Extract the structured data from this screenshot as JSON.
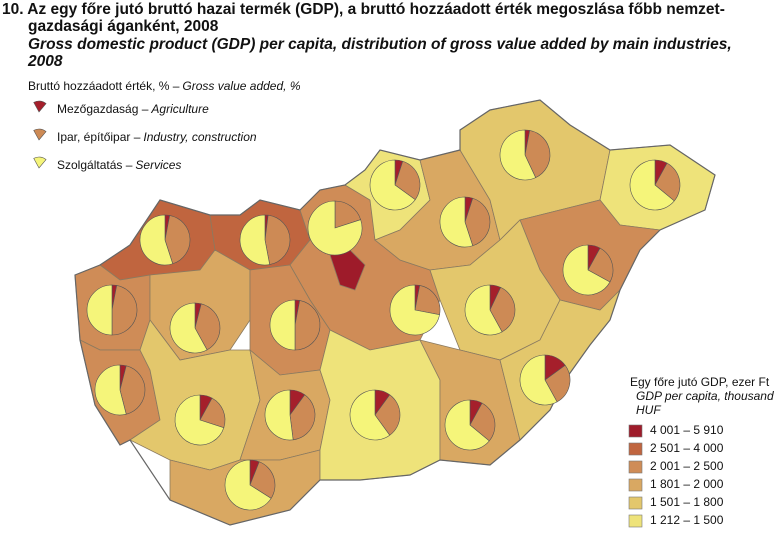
{
  "title": {
    "hu": [
      "10. Az egy főre jutó bruttó hazai termék (GDP), a bruttó hozzáadott érték megoszlása főbb nemzet-",
      "gazdasági áganként, 2008"
    ],
    "en": [
      "Gross domestic product (GDP) per capita, distribution of gross value added by main industries,",
      "2008"
    ]
  },
  "pie_legend": {
    "title_hu": "Bruttó hozzáadott érték, % –",
    "title_en": "Gross value added, %",
    "items": [
      {
        "hu": "Mezőgazdaság –",
        "en": "Agriculture",
        "color": "#a51f2b"
      },
      {
        "hu": "Ipar, építőipar –",
        "en": "Industry, construction",
        "color": "#cd8a55"
      },
      {
        "hu": "Szolgáltatás –",
        "en": "Services",
        "color": "#f5f57a"
      }
    ]
  },
  "gdp_legend": {
    "title": [
      "Egy főre jutó GDP, ezer Ft",
      "GDP per capita, thousand",
      "HUF"
    ],
    "classes": [
      {
        "label": "4 001 – 5 910",
        "color": "#9e1b2a"
      },
      {
        "label": "2 501 – 4 000",
        "color": "#c0653f"
      },
      {
        "label": "2 001 – 2 500",
        "color": "#cf8c57"
      },
      {
        "label": "1 801 – 2 000",
        "color": "#d9a862"
      },
      {
        "label": "1 501 – 1 800",
        "color": "#e3c76c"
      },
      {
        "label": "1 212 – 1 500",
        "color": "#eee37a"
      }
    ]
  },
  "regions": [
    {
      "class": 1,
      "pie": [
        3,
        42,
        55
      ]
    },
    {
      "class": 1,
      "pie": [
        2,
        45,
        53
      ]
    },
    {
      "class": 2,
      "pie": [
        3,
        25,
        72
      ]
    },
    {
      "class": 0,
      "pie": [
        0,
        20,
        80
      ]
    },
    {
      "class": 5,
      "pie": [
        5,
        30,
        65
      ]
    },
    {
      "class": 3,
      "pie": [
        5,
        40,
        55
      ]
    },
    {
      "class": 4,
      "pie": [
        3,
        40,
        57
      ]
    },
    {
      "class": 5,
      "pie": [
        8,
        28,
        64
      ]
    },
    {
      "class": 2,
      "pie": [
        8,
        25,
        67
      ]
    },
    {
      "class": 4,
      "pie": [
        7,
        35,
        58
      ]
    },
    {
      "class": 2,
      "pie": [
        3,
        47,
        50
      ]
    },
    {
      "class": 3,
      "pie": [
        4,
        38,
        58
      ]
    },
    {
      "class": 2,
      "pie": [
        3,
        47,
        50
      ]
    },
    {
      "class": 2,
      "pie": [
        4,
        42,
        54
      ]
    },
    {
      "class": 4,
      "pie": [
        8,
        22,
        70
      ]
    },
    {
      "class": 3,
      "pie": [
        10,
        38,
        52
      ]
    },
    {
      "class": 3,
      "pie": [
        6,
        28,
        66
      ]
    },
    {
      "class": 5,
      "pie": [
        10,
        30,
        60
      ]
    },
    {
      "class": 3,
      "pie": [
        8,
        28,
        64
      ]
    },
    {
      "class": 4,
      "pie": [
        15,
        27,
        58
      ]
    }
  ]
}
